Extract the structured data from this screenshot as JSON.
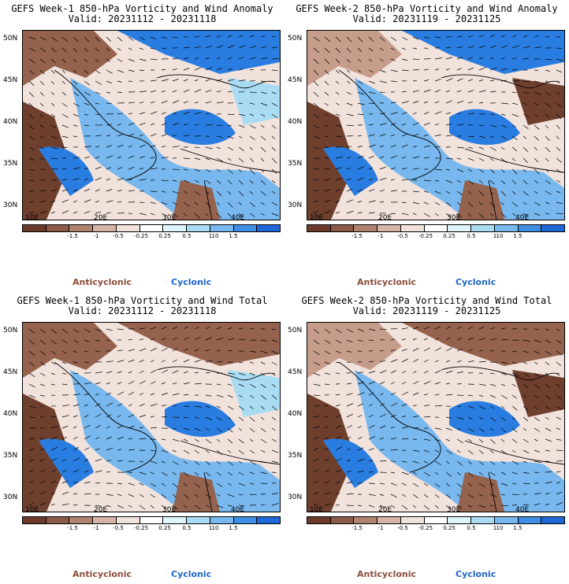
{
  "panels": [
    {
      "title_line1": "GEFS Week-1 850-hPa Vorticity and Wind Anomaly",
      "title_line2": "Valid: 20231112 - 20231118"
    },
    {
      "title_line1": "GEFS Week-2 850-hPa Vorticity and Wind Anomaly",
      "title_line2": "Valid: 20231119 - 20231125"
    },
    {
      "title_line1": "GEFS Week-1 850-hPa Vorticity and Wind Total",
      "title_line2": "Valid: 20231112 - 20231118"
    },
    {
      "title_line1": "GEFS Week-2 850-hPa Vorticity and Wind Total",
      "title_line2": "Valid: 20231119 - 20231125"
    }
  ],
  "axes": {
    "lat_labels": [
      "50N",
      "45N",
      "40N",
      "35N",
      "30N"
    ],
    "lon_labels": [
      "10E",
      "20E",
      "30E",
      "40E"
    ]
  },
  "colorbar": {
    "ticks": [
      "-1.5",
      "-1",
      "-0.5",
      "-0.25",
      "0.25",
      "0.5",
      "1",
      "1.5"
    ],
    "multiplier_text": "10",
    "colors": [
      "#6b3a2a",
      "#8b5a48",
      "#b08270",
      "#d6b4a6",
      "#f2e2dc",
      "#ffffff",
      "#e0f4fb",
      "#a9dcf3",
      "#78b8ee",
      "#3e8fe3",
      "#1f66d6"
    ]
  },
  "legend": {
    "anticyclonic": "Anticyclonic",
    "cyclonic": "Cyclonic"
  }
}
